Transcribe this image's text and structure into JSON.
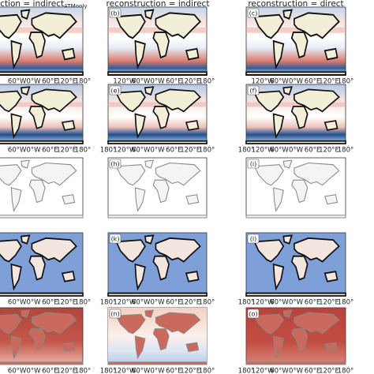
{
  "column_titles": [
    {
      "text": "uction = indirect",
      "subscript": "ATMonly"
    },
    {
      "text": "reconstruction = indirect"
    },
    {
      "text": "reconstruction = direct"
    }
  ],
  "panel_labels": [
    [
      "(b)",
      "(c)"
    ],
    [
      "(e)",
      "(f)"
    ],
    [
      "(h)",
      "(i)"
    ],
    [
      "(k)",
      "(l)"
    ],
    [
      "(n)",
      "(o)"
    ]
  ],
  "lon_labels_left": [
    "60°W",
    "0°W",
    "60°E",
    "120°E",
    "180°"
  ],
  "lon_labels_top": [
    "120°W",
    "60°W",
    "0°W",
    "60°E",
    "120°E",
    "180°"
  ],
  "lon_labels": [
    "180°",
    "120°W",
    "60°W",
    "0°W",
    "60°E",
    "120°E",
    "180°"
  ]
}
